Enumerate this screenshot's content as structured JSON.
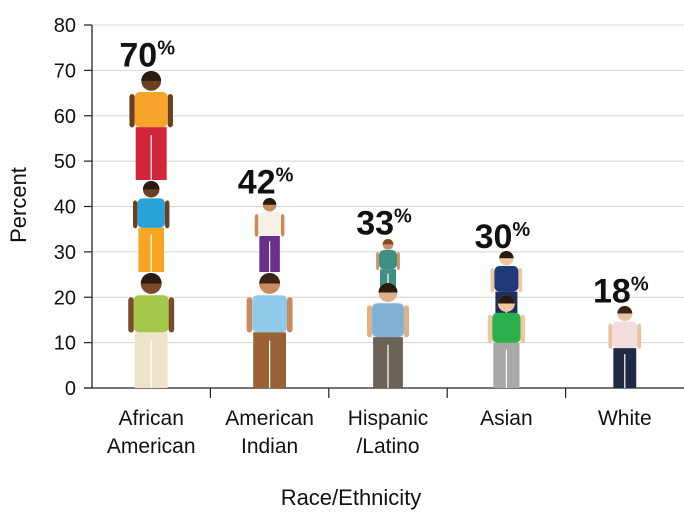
{
  "chart_data": {
    "type": "bar",
    "categories": [
      [
        "African",
        "American"
      ],
      [
        "American",
        "Indian"
      ],
      [
        "Hispanic",
        "/Latino"
      ],
      [
        "Asian"
      ],
      [
        "White"
      ]
    ],
    "values": [
      70,
      42,
      33,
      30,
      18
    ],
    "value_labels": [
      "70%",
      "42%",
      "33%",
      "30%",
      "18%"
    ],
    "ylabel": "Percent",
    "xlabel": "Race/Ethnicity",
    "ylim": [
      0,
      80
    ],
    "yticks": [
      0,
      10,
      20,
      30,
      40,
      50,
      60,
      70,
      80
    ],
    "grid": true,
    "mark_style": "stacked person pictograms"
  }
}
